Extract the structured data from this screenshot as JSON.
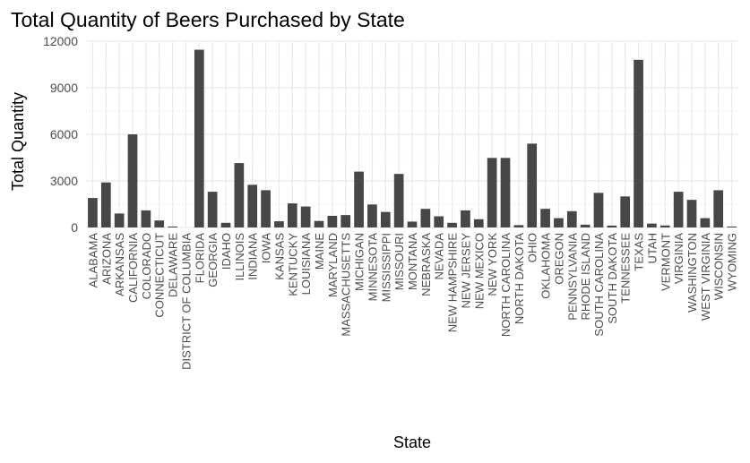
{
  "chart_data": {
    "type": "bar",
    "title": "Total Quantity of Beers Purchased by State",
    "xlabel": "State",
    "ylabel": "Total Quantity",
    "ylim": [
      0,
      12000
    ],
    "yticks": [
      0,
      3000,
      6000,
      9000,
      12000
    ],
    "ytick_labels": [
      "0",
      "3000",
      "6000",
      "9000",
      "12000"
    ],
    "grid": true,
    "bar_color": "#474747",
    "categories": [
      "ALABAMA",
      "ARIZONA",
      "ARKANSAS",
      "CALIFORNIA",
      "COLORADO",
      "CONNECTICUT",
      "DELAWARE",
      "DISTRICT OF COLUMBIA",
      "FLORIDA",
      "GEORGIA",
      "IDAHO",
      "ILLINOIS",
      "INDIANA",
      "IOWA",
      "KANSAS",
      "KENTUCKY",
      "LOUISIANA",
      "MAINE",
      "MARYLAND",
      "MASSACHUSETTS",
      "MICHIGAN",
      "MINNESOTA",
      "MISSISSIPPI",
      "MISSOURI",
      "MONTANA",
      "NEBRASKA",
      "NEVADA",
      "NEW HAMPSHIRE",
      "NEW JERSEY",
      "NEW MEXICO",
      "NEW YORK",
      "NORTH CAROLINA",
      "NORTH DAKOTA",
      "OHIO",
      "OKLAHOMA",
      "OREGON",
      "PENNSYLVANIA",
      "RHODE ISLAND",
      "SOUTH CAROLINA",
      "SOUTH DAKOTA",
      "TENNESSEE",
      "TEXAS",
      "UTAH",
      "VERMONT",
      "VIRGINIA",
      "WASHINGTON",
      "WEST VIRGINIA",
      "WISCONSIN",
      "WYOMING"
    ],
    "values": [
      1900,
      2900,
      900,
      6000,
      1100,
      450,
      60,
      0,
      11450,
      2300,
      300,
      4150,
      2750,
      2400,
      400,
      1550,
      1350,
      420,
      750,
      800,
      3600,
      1480,
      1000,
      3450,
      380,
      1200,
      720,
      300,
      1100,
      530,
      4480,
      4480,
      150,
      5400,
      1200,
      600,
      1050,
      180,
      2230,
      120,
      2000,
      10800,
      250,
      130,
      2300,
      1780,
      600,
      2400,
      60
    ]
  }
}
